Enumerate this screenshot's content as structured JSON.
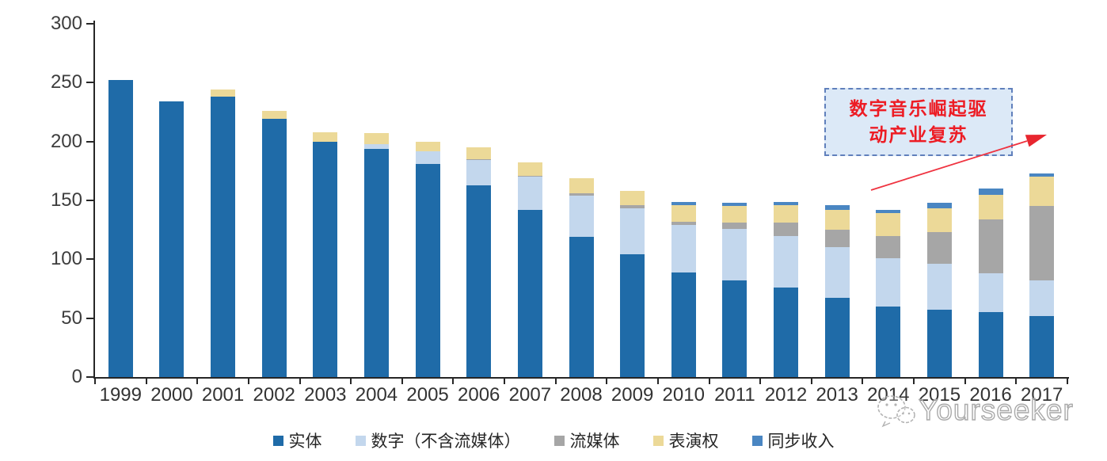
{
  "chart_data": {
    "type": "bar",
    "stacked": true,
    "title": "",
    "xlabel": "",
    "ylabel": "",
    "ylim": [
      0,
      300
    ],
    "y_ticks": [
      0,
      50,
      100,
      150,
      200,
      250,
      300
    ],
    "grid": false,
    "legend_position": "bottom",
    "categories": [
      "1999",
      "2000",
      "2001",
      "2002",
      "2003",
      "2004",
      "2005",
      "2006",
      "2007",
      "2008",
      "2009",
      "2010",
      "2011",
      "2012",
      "2013",
      "2014",
      "2015",
      "2016",
      "2017"
    ],
    "series": [
      {
        "name": "实体",
        "color": "#1f6ba8",
        "values": [
          252,
          234,
          238,
          219,
          200,
          194,
          181,
          163,
          142,
          119,
          104,
          89,
          82,
          76,
          67,
          60,
          57,
          55,
          52
        ]
      },
      {
        "name": "数字（不含流媒体）",
        "color": "#c3d7ed",
        "values": [
          0,
          0,
          0,
          0,
          0,
          4,
          11,
          21,
          28,
          35,
          39,
          40,
          44,
          44,
          43,
          41,
          39,
          33,
          30
        ]
      },
      {
        "name": "流媒体",
        "color": "#a6a6a6",
        "values": [
          0,
          0,
          0,
          0,
          0,
          0,
          0,
          1,
          1,
          2,
          3,
          3,
          5,
          11,
          15,
          19,
          27,
          46,
          63
        ]
      },
      {
        "name": "表演权",
        "color": "#ecd998",
        "values": [
          0,
          0,
          6,
          7,
          8,
          9,
          8,
          10,
          11,
          13,
          12,
          14,
          14,
          15,
          17,
          19,
          20,
          21,
          25
        ]
      },
      {
        "name": "同步收入",
        "color": "#4a86c2",
        "values": [
          0,
          0,
          0,
          0,
          0,
          0,
          0,
          0,
          0,
          0,
          0,
          3,
          3,
          3,
          4,
          3,
          5,
          5,
          3
        ]
      }
    ]
  },
  "annotation": {
    "line1": "数字音乐崛起驱",
    "line2": "动产业复苏",
    "box_fill": "#dce9f7",
    "border_color": "#6080bc",
    "text_color": "#ed1c24",
    "arrow_color": "#ef3340"
  },
  "watermark": {
    "text": "Yourseeker",
    "icon": "wechat-icon",
    "color": "#a9a9a9"
  },
  "axis": {
    "color": "#262626",
    "tick_label_color": "#3d3d3d"
  }
}
